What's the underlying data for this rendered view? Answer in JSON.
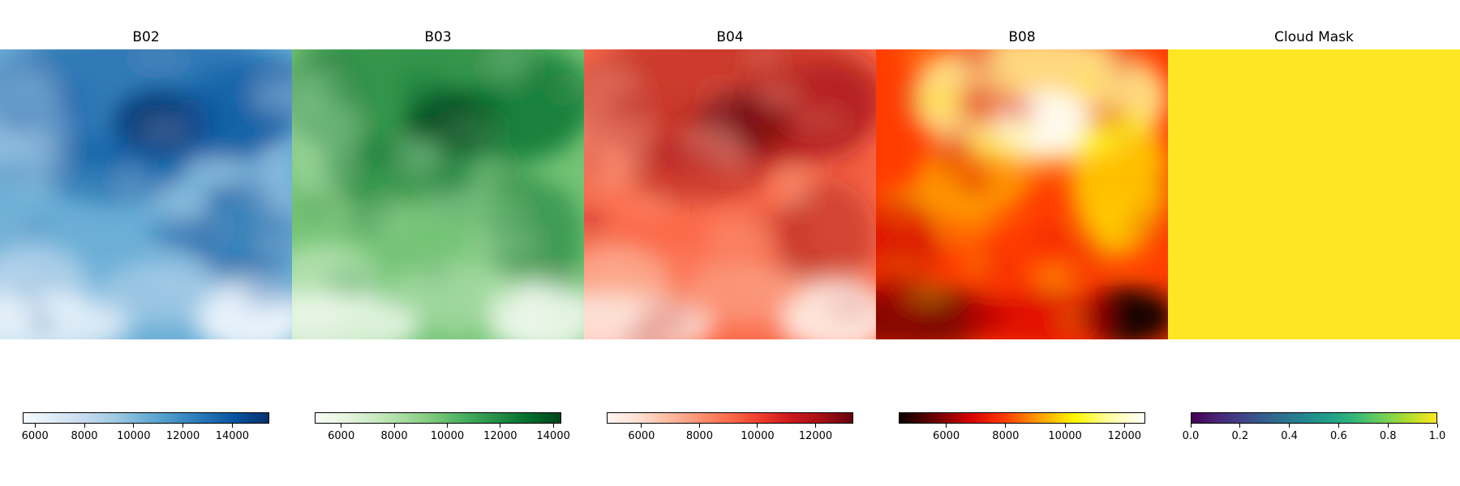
{
  "chart_data": [
    {
      "type": "heatmap",
      "title": "B02",
      "colormap": "Blues",
      "colors": [
        "#f7fbff",
        "#deebf7",
        "#c6dbef",
        "#9ecae1",
        "#6baed6",
        "#4292c6",
        "#2171b5",
        "#08519c",
        "#08306b"
      ],
      "value_range": [
        5500,
        15500
      ],
      "colorbar_ticks": [
        6000,
        8000,
        10000,
        12000,
        14000
      ],
      "colorbar_tick_labels": [
        "6000",
        "8000",
        "10000",
        "12000",
        "14000"
      ],
      "grid": false,
      "axes_visible": false
    },
    {
      "type": "heatmap",
      "title": "B03",
      "colormap": "Greens",
      "colors": [
        "#f7fcf5",
        "#e5f5e0",
        "#c7e9c0",
        "#a1d99b",
        "#74c476",
        "#41ab5d",
        "#238b45",
        "#006d2c",
        "#00441b"
      ],
      "value_range": [
        5000,
        14300
      ],
      "colorbar_ticks": [
        6000,
        8000,
        10000,
        12000,
        14000
      ],
      "colorbar_tick_labels": [
        "6000",
        "8000",
        "10000",
        "12000",
        "14000"
      ],
      "grid": false,
      "axes_visible": false
    },
    {
      "type": "heatmap",
      "title": "B04",
      "colormap": "Reds",
      "colors": [
        "#fff5f0",
        "#fee0d2",
        "#fcbba1",
        "#fc9272",
        "#fb6a4a",
        "#ef3b2c",
        "#cb181d",
        "#a50f15",
        "#67000d"
      ],
      "value_range": [
        4800,
        13300
      ],
      "colorbar_ticks": [
        6000,
        8000,
        10000,
        12000
      ],
      "colorbar_tick_labels": [
        "6000",
        "8000",
        "10000",
        "12000"
      ],
      "grid": false,
      "axes_visible": false
    },
    {
      "type": "heatmap",
      "title": "B08",
      "colormap": "hot",
      "colors": [
        "#0b0000",
        "#6a0000",
        "#d40000",
        "#ff3c00",
        "#ff9f00",
        "#fff700",
        "#ffffa0",
        "#ffffff"
      ],
      "value_range": [
        4400,
        12700
      ],
      "colorbar_ticks": [
        6000,
        8000,
        10000,
        12000
      ],
      "colorbar_tick_labels": [
        "6000",
        "8000",
        "10000",
        "12000"
      ],
      "grid": false,
      "axes_visible": false
    },
    {
      "type": "heatmap",
      "title": "Cloud Mask",
      "colormap": "viridis",
      "colors": [
        "#440154",
        "#482878",
        "#3e4989",
        "#31688e",
        "#26828e",
        "#1f9e89",
        "#35b779",
        "#6ece58",
        "#b5de2b",
        "#fde725"
      ],
      "value_range": [
        0.0,
        1.0
      ],
      "uniform_value": 1.0,
      "colorbar_ticks": [
        0.0,
        0.2,
        0.4,
        0.6,
        0.8,
        1.0
      ],
      "colorbar_tick_labels": [
        "0.0",
        "0.2",
        "0.4",
        "0.6",
        "0.8",
        "1.0"
      ],
      "grid": false,
      "axes_visible": false
    }
  ]
}
